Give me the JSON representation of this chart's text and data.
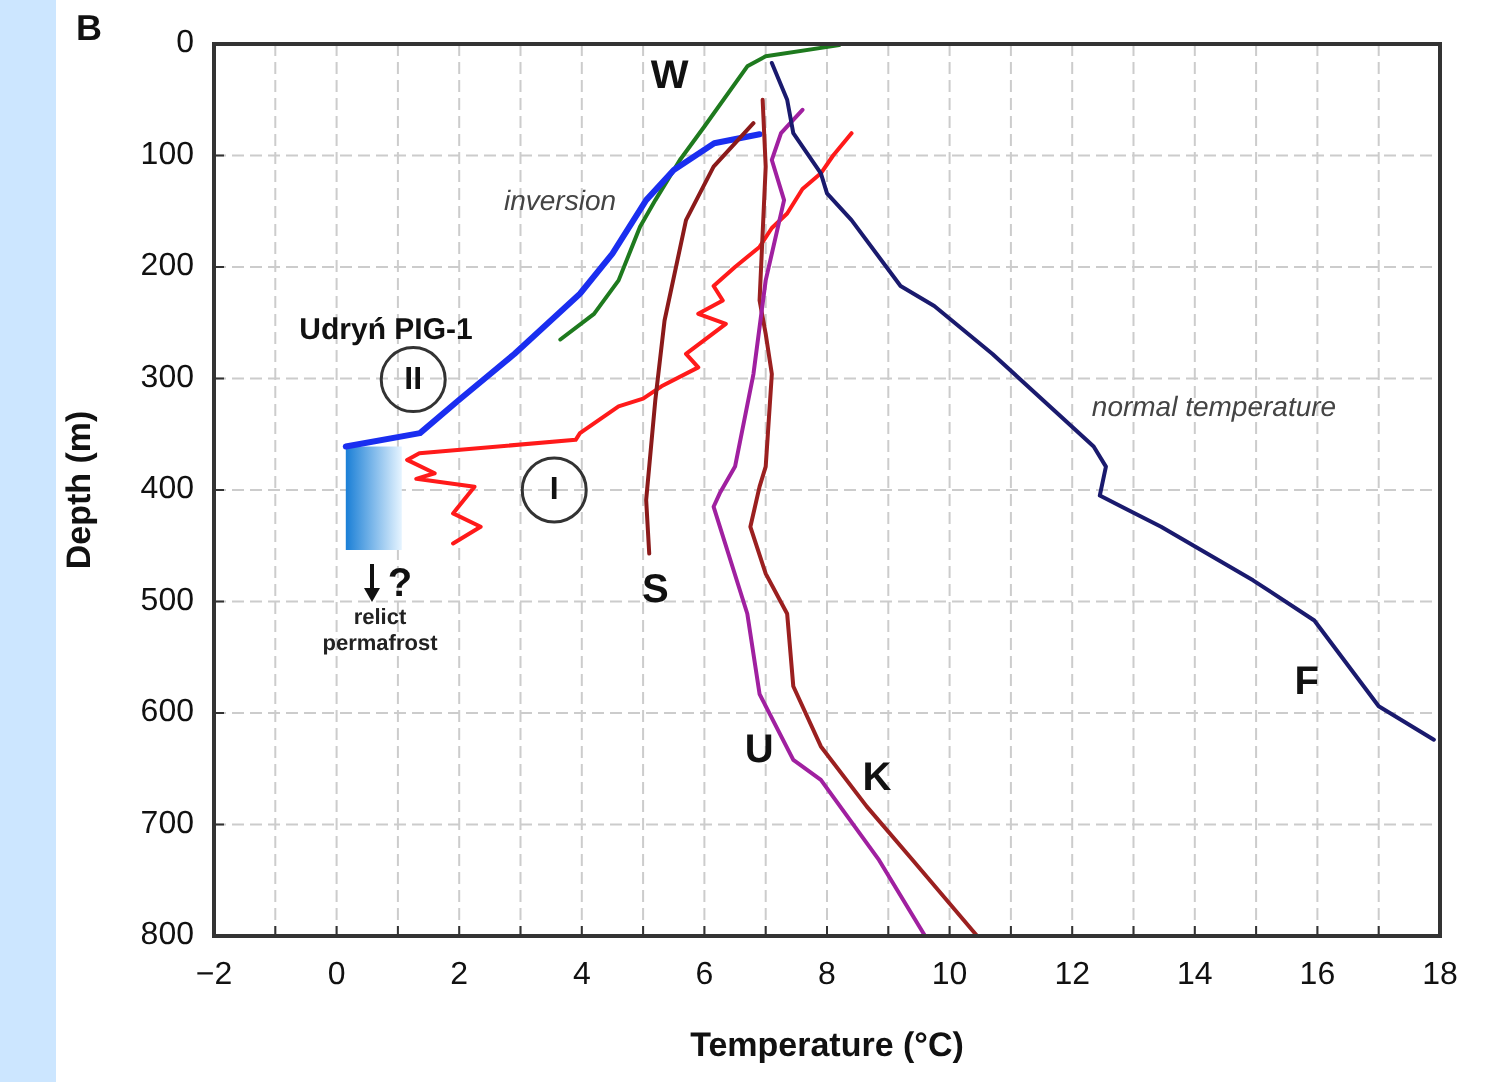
{
  "chart_data": {
    "type": "line",
    "xlabel": "Temperature (°C)",
    "ylabel": "Depth (m)",
    "xlim": [
      -2,
      18
    ],
    "xticks": [
      -2,
      {
        "value": -1,
        "label": null
      },
      0,
      {
        "value": 1,
        "label": null
      },
      2,
      {
        "value": 3,
        "label": null
      },
      4,
      {
        "value": 5,
        "label": null
      },
      6,
      {
        "value": 7,
        "label": null
      },
      8,
      {
        "value": 9,
        "label": null
      },
      10,
      {
        "value": 11,
        "label": null
      },
      12,
      {
        "value": 13,
        "label": null
      },
      14,
      {
        "value": 15,
        "label": null
      },
      16,
      {
        "value": 17,
        "label": null
      },
      18
    ],
    "ylim": [
      800,
      0
    ],
    "yticks": [
      0,
      100,
      200,
      300,
      400,
      500,
      600,
      700,
      800
    ],
    "grid": true,
    "marker": "none",
    "line_style": "solid",
    "series": [
      {
        "name": "W",
        "color": "#1e7a1e",
        "x": [
          8.2,
          7.0,
          6.7,
          6.0,
          5.6,
          5.2,
          4.95,
          4.6,
          4.2,
          3.65
        ],
        "values": [
          1,
          11,
          20,
          74,
          104,
          140,
          164,
          212,
          242,
          265
        ]
      },
      {
        "color": "#1a2ef0",
        "x": [
          6.9,
          6.16,
          5.5,
          5.05,
          4.5,
          3.97,
          2.9,
          2.0,
          1.36,
          0.15
        ],
        "values": [
          81,
          89,
          113,
          140,
          188,
          224,
          278,
          319,
          349,
          361
        ]
      },
      {
        "color": "#ff1a1a",
        "x": [
          8.4,
          8.1,
          7.9,
          7.6,
          7.35,
          7.1,
          6.9,
          6.5,
          6.15,
          6.3,
          5.9,
          6.35,
          5.7,
          5.9,
          5.3,
          5.0,
          4.6,
          3.97,
          3.9,
          1.35,
          1.15,
          1.6,
          1.3,
          2.25,
          1.9,
          2.35,
          1.9
        ],
        "values": [
          80,
          100,
          116,
          130,
          152,
          165,
          182,
          200,
          217,
          230,
          242,
          251,
          278,
          290,
          307,
          318,
          325,
          349,
          355,
          367,
          373,
          385,
          390,
          397,
          421,
          433,
          448
        ]
      },
      {
        "name": "S",
        "color": "#8b1a1a",
        "x": [
          6.8,
          6.15,
          5.7,
          5.35,
          5.2,
          5.05,
          5.1
        ],
        "values": [
          71,
          110,
          158,
          248,
          319,
          409,
          457
        ]
      },
      {
        "name": "K",
        "color": "#9b2020",
        "x": [
          6.95,
          7.0,
          6.9,
          7.0,
          7.1,
          7.0,
          6.9,
          6.75,
          7.0,
          7.35,
          7.45,
          7.9,
          8.65,
          9.4,
          10.45
        ],
        "values": [
          50,
          110,
          230,
          260,
          296,
          379,
          397,
          433,
          475,
          511,
          576,
          630,
          684,
          732,
          800
        ]
      },
      {
        "name": "U",
        "color": "#a020a0",
        "x": [
          7.6,
          7.25,
          7.1,
          7.3,
          7.0,
          6.8,
          6.5,
          6.25,
          6.15,
          6.7,
          6.9,
          7.45,
          7.9,
          8.85,
          9.6
        ],
        "values": [
          59,
          80,
          104,
          140,
          212,
          296,
          379,
          403,
          415,
          511,
          583,
          642,
          660,
          732,
          800
        ]
      },
      {
        "name": "F",
        "color": "#1a1a6e",
        "x": [
          7.1,
          7.35,
          7.45,
          7.9,
          8.0,
          8.4,
          9.2,
          9.75,
          10.7,
          12.35,
          12.55,
          12.45,
          13.45,
          14.95,
          15.95,
          17.0,
          17.9
        ],
        "values": [
          17,
          50,
          80,
          116,
          134,
          158,
          217,
          235,
          278,
          361,
          379,
          405,
          433,
          481,
          517,
          594,
          624
        ]
      }
    ],
    "annotations": [
      "inversion",
      "normal temperature",
      "Udryń PIG-1",
      "?",
      "relict permafrost",
      "B",
      {
        "text": "II",
        "x": 1.25,
        "y": 301
      },
      {
        "text": "I",
        "x": 3.55,
        "y": 400
      }
    ]
  }
}
